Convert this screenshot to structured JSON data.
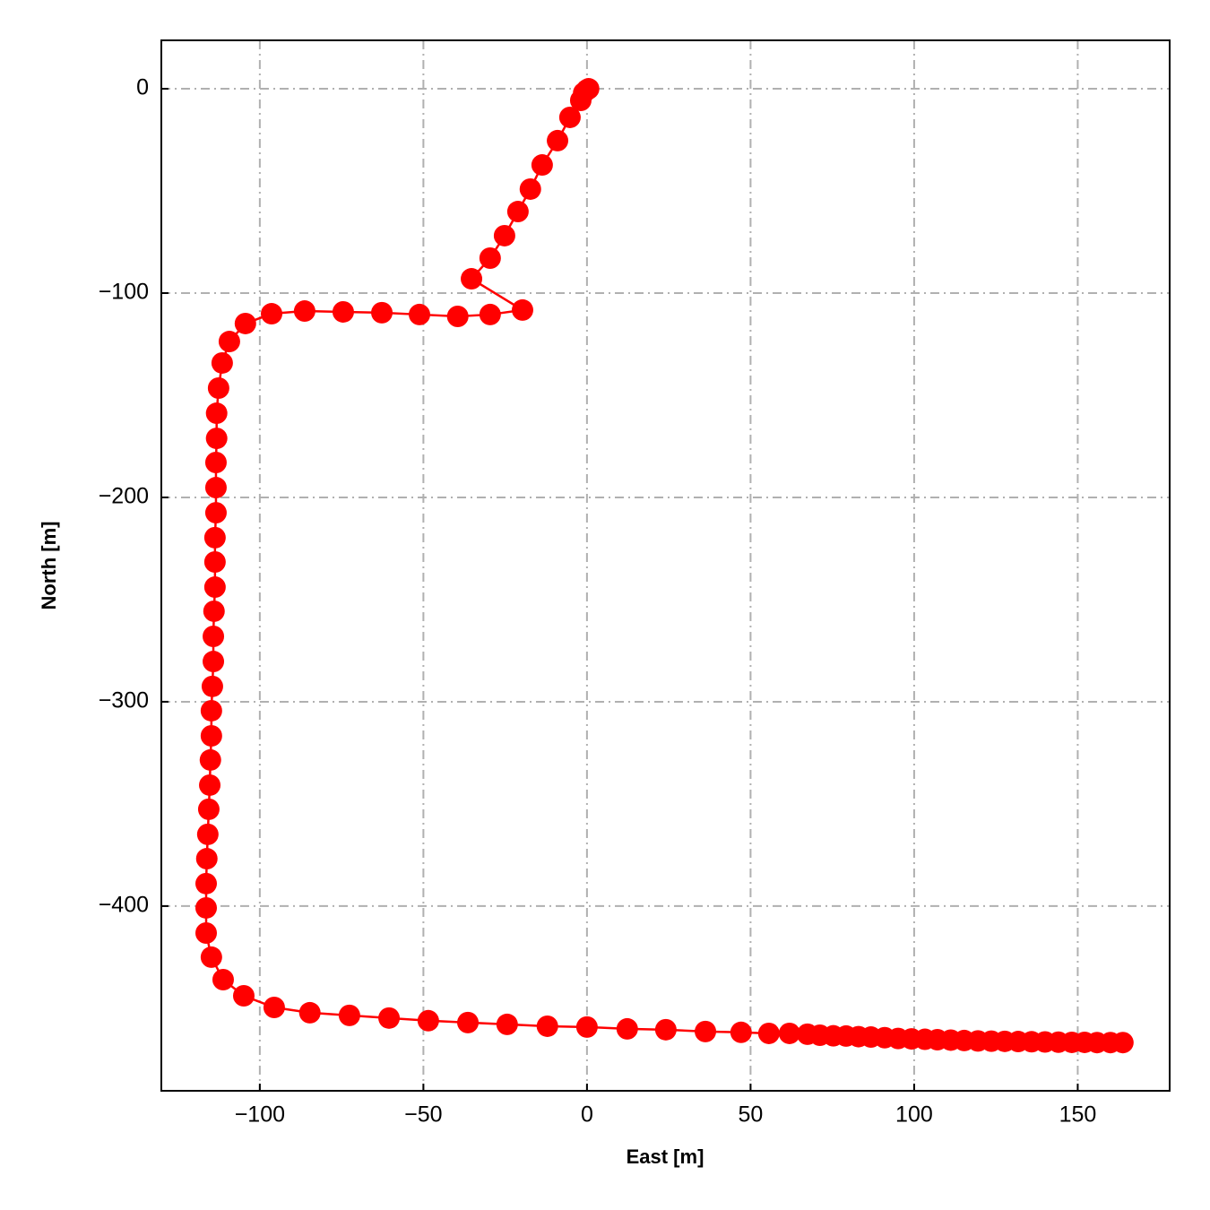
{
  "chart_data": {
    "type": "line",
    "x_label": "East [m]",
    "y_label": "North [m]",
    "color": "#ff0000",
    "grid": true,
    "xlim": [
      -130.1,
      178.1
    ],
    "ylim": [
      -490.4,
      23.7
    ],
    "xticks": [
      {
        "value": -100,
        "label": "−100"
      },
      {
        "value": -50,
        "label": "−50"
      },
      0,
      50,
      100,
      150
    ],
    "yticks": [
      0,
      {
        "value": -100,
        "label": "−100"
      },
      {
        "value": -200,
        "label": "−200"
      },
      {
        "value": -300,
        "label": "−300"
      },
      {
        "value": -400,
        "label": "−400"
      }
    ],
    "x": [
      0.5,
      0,
      -1,
      -1.9,
      -5.2,
      -9,
      -13.7,
      -17.3,
      -21.1,
      -25.2,
      -29.6,
      -35.3,
      -19.7,
      -29.6,
      -39.5,
      -51.2,
      -62.7,
      -74.5,
      -86.3,
      -96.4,
      -104.4,
      -109.3,
      -111.5,
      -112.6,
      -113.2,
      -113.2,
      -113.4,
      -113.4,
      -113.4,
      -113.7,
      -113.7,
      -113.7,
      -114,
      -114.2,
      -114.2,
      -114.5,
      -114.8,
      -114.8,
      -115.1,
      -115.3,
      -115.6,
      -115.9,
      -116.2,
      -116.4,
      -116.4,
      -116.4,
      -114.8,
      -111.2,
      -104.9,
      -95.6,
      -84.7,
      -72.6,
      -60.5,
      -48.5,
      -36.4,
      -24.4,
      -12.1,
      0,
      12.3,
      24.1,
      36.2,
      47.1,
      55.6,
      61.9,
      67.4,
      71.2,
      75.3,
      79.2,
      83,
      86.8,
      91,
      95.1,
      99.2,
      103.3,
      107.1,
      111.2,
      115.3,
      119.5,
      123.6,
      127.7,
      131.8,
      135.9,
      140,
      144.1,
      148.2,
      152.1,
      155.9,
      160,
      163.8
    ],
    "values": [
      0,
      -0.5,
      -2,
      -5.7,
      -14,
      -25.4,
      -37.3,
      -49.1,
      -60.1,
      -71.9,
      -82.9,
      -93,
      -108.3,
      -110.5,
      -111.4,
      -110.5,
      -109.6,
      -109.2,
      -108.8,
      -110.1,
      -114.9,
      -123.7,
      -134.2,
      -146.5,
      -158.8,
      -171.1,
      -182.9,
      -195.2,
      -207.5,
      -219.7,
      -231.6,
      -243.9,
      -255.7,
      -268,
      -280.3,
      -292.5,
      -304.4,
      -316.7,
      -328.5,
      -340.8,
      -352.6,
      -364.9,
      -376.8,
      -389,
      -400.9,
      -413.2,
      -425,
      -436,
      -443.9,
      -449.6,
      -452.2,
      -453.5,
      -454.8,
      -456.1,
      -457,
      -457.9,
      -458.8,
      -459.2,
      -460.1,
      -460.5,
      -461.4,
      -461.8,
      -462.3,
      -462.3,
      -462.7,
      -463.2,
      -463.5,
      -463.6,
      -463.9,
      -464.1,
      -464.4,
      -464.8,
      -465,
      -465.2,
      -465.4,
      -465.6,
      -465.8,
      -466,
      -466.1,
      -466.2,
      -466.3,
      -466.4,
      -466.5,
      -466.6,
      -466.7,
      -466.7,
      -466.8,
      -466.8,
      -466.8
    ]
  }
}
